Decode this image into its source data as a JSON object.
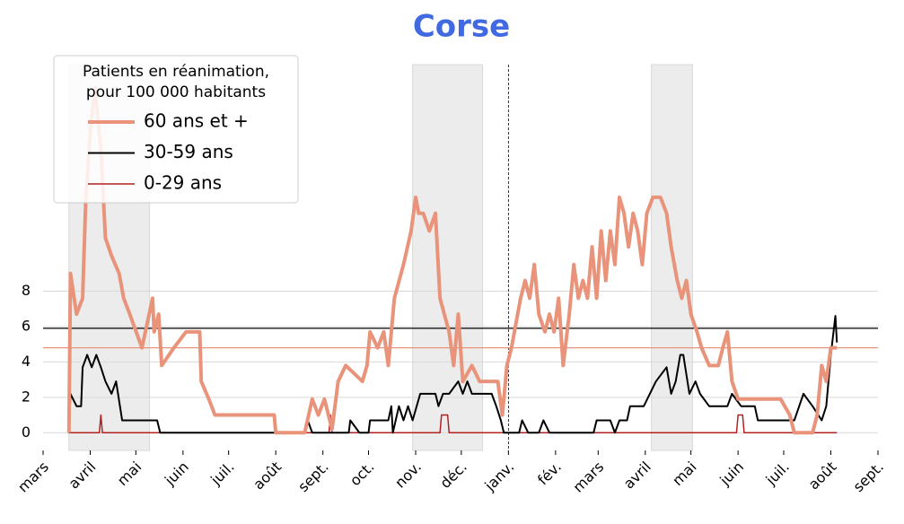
{
  "chart_data": {
    "type": "line",
    "title": "Corse",
    "legend_title": [
      "Patients en réanimation,",
      "pour 100 000 habitants"
    ],
    "series": [
      {
        "name": "60 ans et +",
        "color": "#e8937a",
        "width": 4,
        "x": [
          17,
          18,
          22,
          26,
          28,
          31,
          34,
          38,
          41,
          45,
          50,
          53,
          57,
          65,
          72,
          73,
          76,
          78,
          86,
          94,
          103,
          104,
          109,
          113,
          152,
          153,
          172,
          177,
          181,
          185,
          190,
          194,
          199,
          210,
          213,
          215,
          220,
          224,
          227,
          231,
          237,
          242,
          245,
          247,
          250,
          254,
          258,
          261,
          267,
          270,
          273,
          276,
          282,
          287,
          299,
          302,
          305,
          308,
          314,
          317,
          320,
          323,
          326,
          330,
          333,
          336,
          339,
          342,
          346,
          349,
          352,
          355,
          358,
          361,
          364,
          367,
          370,
          373,
          376,
          379,
          382,
          385,
          388,
          391,
          394,
          397,
          401,
          406,
          410,
          413,
          417,
          420,
          423,
          426,
          430,
          433,
          438,
          444,
          447,
          450,
          453,
          457,
          485,
          491,
          494,
          506,
          509,
          512,
          515,
          518,
          522
        ],
        "values": [
          0,
          9,
          6.7,
          7.6,
          13,
          17,
          19.5,
          16,
          11,
          10,
          9,
          7.6,
          6.7,
          4.8,
          7.6,
          5.7,
          6.7,
          3.8,
          4.8,
          5.7,
          5.7,
          2.9,
          1.9,
          1,
          1,
          0,
          0,
          1.9,
          1,
          1.9,
          0.2,
          2.9,
          3.8,
          2.9,
          3.8,
          5.7,
          4.8,
          5.7,
          3.8,
          7.6,
          9.5,
          11.4,
          13.3,
          12.4,
          12.4,
          11.4,
          12.4,
          7.6,
          5.7,
          3.8,
          6.7,
          2.9,
          3.8,
          2.9,
          2.9,
          1,
          3.8,
          4.8,
          7.6,
          8.6,
          7.6,
          9.5,
          6.7,
          5.7,
          6.7,
          5.7,
          7.6,
          3.8,
          6.7,
          9.5,
          7.6,
          8.6,
          7.6,
          10.5,
          7.6,
          11.4,
          8.6,
          11.4,
          9.5,
          13.3,
          12.4,
          10.5,
          12.4,
          11.4,
          9.5,
          12.4,
          13.3,
          13.3,
          12.4,
          10.5,
          8.6,
          7.6,
          8.6,
          6.7,
          5.7,
          4.8,
          3.8,
          3.8,
          4.8,
          5.7,
          2.9,
          1.9,
          1.9,
          1,
          0,
          0,
          1,
          3.8,
          2.9,
          4.8,
          4.8
        ]
      },
      {
        "name": "30-59 ans",
        "color": "#000000",
        "width": 2,
        "x": [
          17,
          18,
          22,
          25,
          26,
          29,
          32,
          35,
          38,
          41,
          45,
          48,
          52,
          75,
          77,
          172,
          174,
          177,
          201,
          202,
          208,
          214,
          215,
          227,
          229,
          230,
          234,
          237,
          240,
          243,
          248,
          258,
          260,
          263,
          267,
          273,
          276,
          279,
          282,
          295,
          298,
          301,
          303,
          313,
          315,
          319,
          326,
          329,
          333,
          362,
          364,
          373,
          376,
          379,
          384,
          386,
          395,
          403,
          410,
          413,
          416,
          419,
          421,
          425,
          429,
          432,
          438,
          450,
          453,
          459,
          468,
          470,
          494,
          500,
          506,
          512,
          515,
          518,
          521,
          522
        ],
        "values": [
          0,
          2.2,
          1.5,
          1.5,
          3.7,
          4.4,
          3.7,
          4.4,
          3.7,
          2.9,
          2.2,
          2.9,
          0.7,
          0.7,
          0,
          0,
          0.7,
          0,
          0,
          0.7,
          0,
          0,
          0.7,
          0.7,
          1.5,
          0,
          1.5,
          0.7,
          1.5,
          0.7,
          2.2,
          2.2,
          1.5,
          2.2,
          2.2,
          2.9,
          2.2,
          2.9,
          2.2,
          2.2,
          1.5,
          0.7,
          0,
          0,
          0.7,
          0,
          0,
          0.7,
          0,
          0,
          0.7,
          0.7,
          0,
          0.7,
          0.7,
          1.5,
          1.5,
          2.9,
          3.7,
          2.2,
          2.9,
          4.4,
          4.4,
          2.2,
          2.9,
          2.2,
          1.5,
          1.5,
          2.2,
          1.5,
          1.5,
          0.7,
          0.7,
          2.2,
          1.5,
          0.7,
          1.5,
          4.4,
          6.6,
          5.1
        ]
      },
      {
        "name": "0-29 ans",
        "color": "#b22222",
        "width": 1.5,
        "x": [
          17,
          37,
          38,
          39,
          188,
          189,
          190,
          261,
          262,
          266,
          267,
          456,
          457,
          460,
          461,
          522
        ],
        "values": [
          0,
          0,
          1,
          0,
          0,
          1,
          0,
          0,
          1,
          1,
          0,
          0,
          1,
          1,
          0,
          0
        ]
      }
    ],
    "reference_lines": [
      {
        "value": 5.9,
        "color": "#000000"
      },
      {
        "value": 4.8,
        "color": "#e8937a"
      }
    ],
    "shaded_periods": [
      [
        17,
        70
      ],
      [
        243,
        289
      ],
      [
        400,
        427
      ]
    ],
    "year_marker": 306,
    "xlim": [
      0,
      549
    ],
    "xticks": [
      {
        "value": 0,
        "label": "mars"
      },
      {
        "value": 31,
        "label": "avril"
      },
      {
        "value": 61,
        "label": "mai"
      },
      {
        "value": 92,
        "label": "juin"
      },
      {
        "value": 122,
        "label": "juil."
      },
      {
        "value": 153,
        "label": "août"
      },
      {
        "value": 184,
        "label": "sept."
      },
      {
        "value": 214,
        "label": "oct."
      },
      {
        "value": 245,
        "label": "nov."
      },
      {
        "value": 275,
        "label": "déc."
      },
      {
        "value": 306,
        "label": "janv."
      },
      {
        "value": 337,
        "label": "fév."
      },
      {
        "value": 365,
        "label": "mars"
      },
      {
        "value": 396,
        "label": "avril"
      },
      {
        "value": 426,
        "label": "mai"
      },
      {
        "value": 457,
        "label": "juin"
      },
      {
        "value": 487,
        "label": "juil."
      },
      {
        "value": 518,
        "label": "août"
      },
      {
        "value": 549,
        "label": "sept."
      }
    ],
    "ylim": [
      -1,
      20.8
    ],
    "yticks": [
      0,
      2,
      4,
      6,
      8
    ],
    "grid": true
  }
}
